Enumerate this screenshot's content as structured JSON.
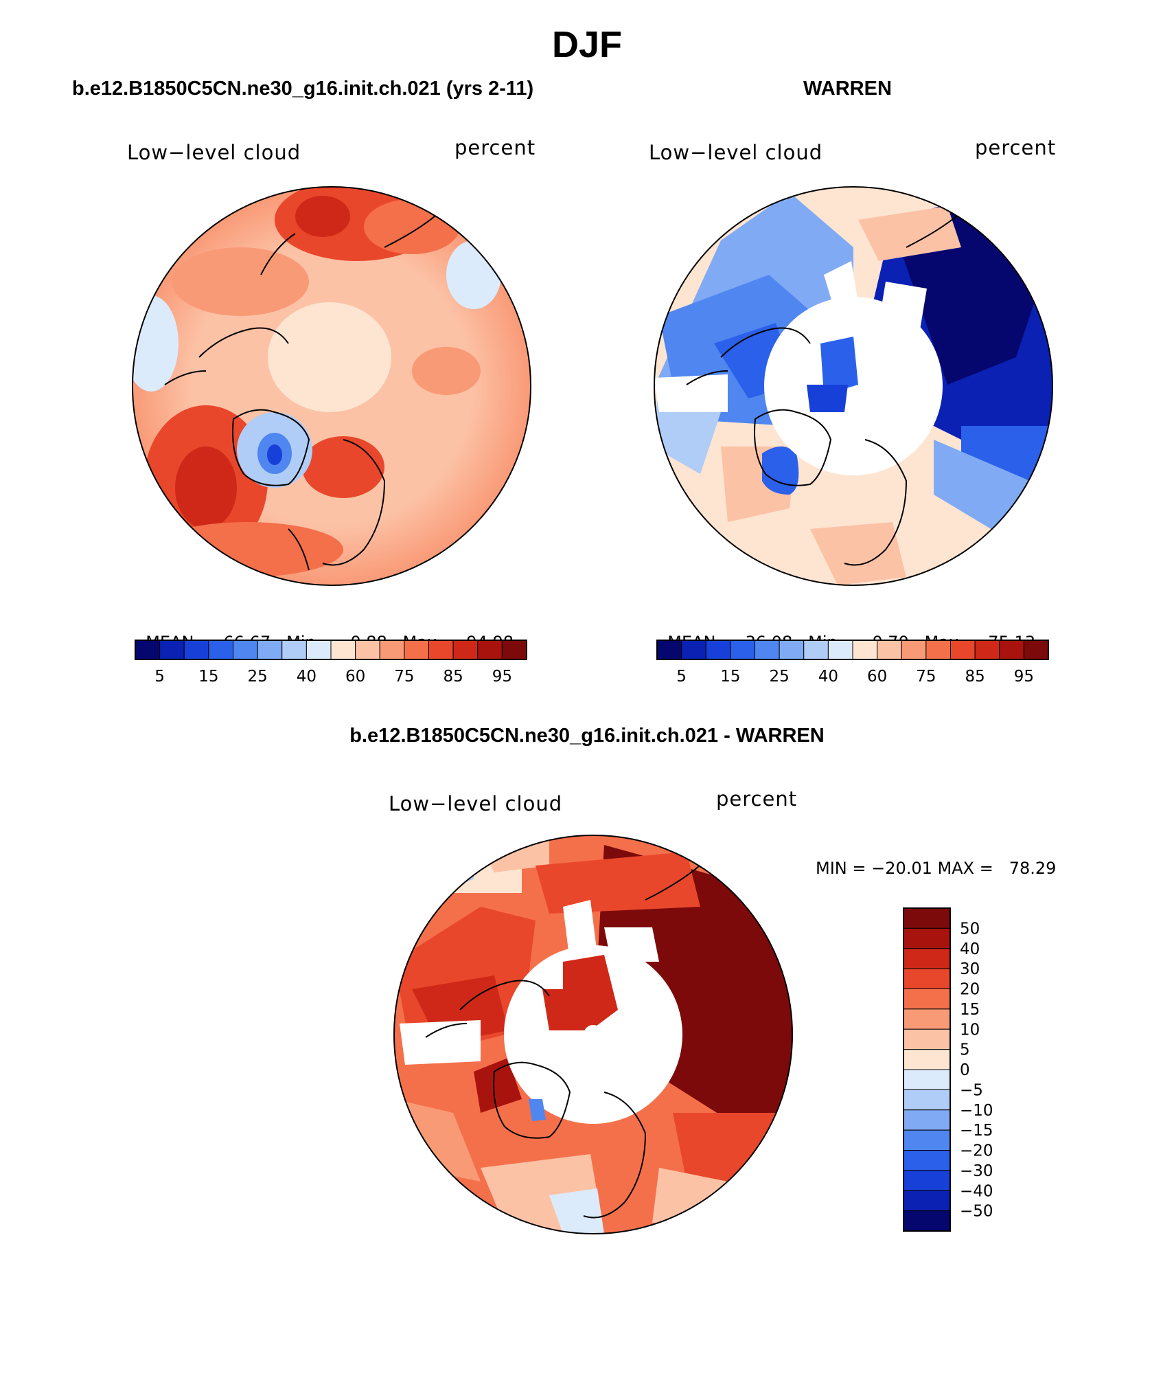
{
  "figure": {
    "title": "DJF"
  },
  "panels": [
    {
      "title": "b.e12.B1850C5CN.ne30_g16.init.ch.021 (yrs 2-11)",
      "variable": "Low−level cloud",
      "units": "percent",
      "stats": {
        "mean_label": "MEAN=",
        "mean": "66.67",
        "min_label": "Min=",
        "min": "0.88",
        "max_label": "Max=",
        "max": "94.98"
      },
      "colorbar_ticks": [
        "5",
        "15",
        "25",
        "40",
        "60",
        "75",
        "85",
        "95"
      ]
    },
    {
      "title": "WARREN",
      "variable": "Low−level cloud",
      "units": "percent",
      "stats": {
        "mean_label": "MEAN=",
        "mean": "36.08",
        "min_label": "Min=",
        "min": "0.70",
        "max_label": "Max=",
        "max": "75.13"
      },
      "colorbar_ticks": [
        "5",
        "15",
        "25",
        "40",
        "60",
        "75",
        "85",
        "95"
      ]
    },
    {
      "title": "b.e12.B1850C5CN.ne30_g16.init.ch.021 - WARREN",
      "variable": "Low−level cloud",
      "units": "percent",
      "stats_line": "MIN = −20.01 MAX =   78.29",
      "colorbar_ticks": [
        "50",
        "40",
        "30",
        "20",
        "15",
        "10",
        "5",
        "0",
        "−5",
        "−10",
        "−15",
        "−20",
        "−30",
        "−40",
        "−50"
      ]
    }
  ],
  "colors": {
    "abs_palette": [
      "#05076e",
      "#0a21b4",
      "#1740d9",
      "#2b60eb",
      "#4f86f0",
      "#80abf4",
      "#b0cdf7",
      "#dcebfb",
      "#fde5d2",
      "#fcc2a6",
      "#f99a77",
      "#f4704b",
      "#e9472b",
      "#d02818",
      "#a9130e",
      "#7d0a0a"
    ],
    "diff_palette": [
      "#7d0a0a",
      "#a9130e",
      "#d02818",
      "#e9472b",
      "#f4704b",
      "#f99a77",
      "#fcc2a6",
      "#fde5d2",
      "#dcebfb",
      "#b0cdf7",
      "#80abf4",
      "#4f86f0",
      "#2b60eb",
      "#1740d9",
      "#0a21b4",
      "#05076e"
    ]
  }
}
